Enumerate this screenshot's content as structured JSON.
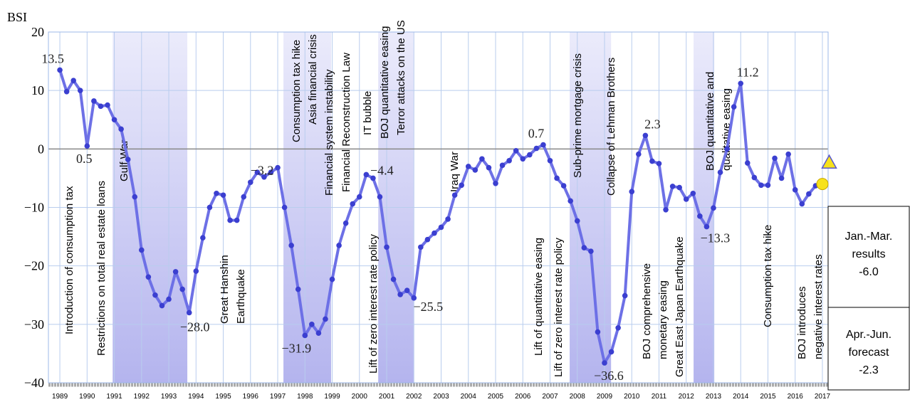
{
  "chart_data": {
    "type": "line",
    "y_label": "BSI",
    "xlim": [
      1988.58,
      2017.21
    ],
    "ylim": [
      -40,
      20
    ],
    "xticks": [
      1989,
      1990,
      1991,
      1992,
      1993,
      1994,
      1995,
      1996,
      1997,
      1998,
      1999,
      2000,
      2001,
      2002,
      2003,
      2004,
      2005,
      2006,
      2007,
      2008,
      2009,
      2010,
      2011,
      2012,
      2013,
      2014,
      2015,
      2016,
      2017
    ],
    "yticks": [
      20,
      10,
      0,
      {
        "value": -10,
        "label": "−10"
      },
      {
        "value": -20,
        "label": "−20"
      },
      {
        "value": -30,
        "label": "−30"
      },
      {
        "value": -40,
        "label": "−40"
      }
    ],
    "grid": true,
    "shaded_periods": [
      [
        1990.94,
        1993.68
      ],
      [
        1997.21,
        1998.96
      ],
      [
        2000.69,
        2001.99
      ],
      [
        2007.72,
        2009.24
      ],
      [
        2012.27,
        2013.03
      ]
    ],
    "series": [
      {
        "color": "#6d70e6",
        "marker_color": "#3b3fd0",
        "x": [
          1989,
          1989.25,
          1989.5,
          1989.75,
          1990,
          1990.25,
          1990.5,
          1990.75,
          1991,
          1991.25,
          1991.5,
          1991.75,
          1992,
          1992.25,
          1992.5,
          1992.75,
          1993,
          1993.25,
          1993.5,
          1993.75,
          1994,
          1994.25,
          1994.5,
          1994.75,
          1995,
          1995.25,
          1995.5,
          1995.75,
          1996,
          1996.25,
          1996.5,
          1996.75,
          1997,
          1997.25,
          1997.5,
          1997.75,
          1998,
          1998.25,
          1998.5,
          1998.75,
          1999,
          1999.25,
          1999.5,
          1999.75,
          2000,
          2000.25,
          2000.5,
          2000.75,
          2001,
          2001.25,
          2001.5,
          2001.75,
          2002,
          2002.25,
          2002.5,
          2002.75,
          2003,
          2003.25,
          2003.5,
          2003.75,
          2004,
          2004.25,
          2004.5,
          2004.75,
          2005,
          2005.25,
          2005.5,
          2005.75,
          2006,
          2006.25,
          2006.5,
          2006.75,
          2007,
          2007.25,
          2007.5,
          2007.75,
          2008,
          2008.25,
          2008.5,
          2008.75,
          2009,
          2009.25,
          2009.5,
          2009.75,
          2010,
          2010.25,
          2010.5,
          2010.75,
          2011,
          2011.25,
          2011.5,
          2011.75,
          2012,
          2012.25,
          2012.5,
          2012.75,
          2013,
          2013.25,
          2013.5,
          2013.75,
          2014,
          2014.25,
          2014.5,
          2014.75,
          2015,
          2015.25,
          2015.5,
          2015.75,
          2016,
          2016.25,
          2016.5,
          2016.75
        ],
        "values": [
          13.5,
          9.8,
          11.7,
          10.0,
          0.5,
          8.2,
          7.3,
          7.5,
          5.0,
          3.4,
          -1.8,
          -8.2,
          -17.3,
          -21.9,
          -25.0,
          -26.8,
          -25.7,
          -21.0,
          -24.0,
          -28.0,
          -20.9,
          -15.2,
          -10.0,
          -7.6,
          -7.9,
          -12.2,
          -12.2,
          -8.2,
          -5.7,
          -4.0,
          -4.8,
          -4.0,
          -3.2,
          -10.0,
          -16.5,
          -24.0,
          -31.9,
          -30.0,
          -31.5,
          -29.1,
          -22.3,
          -16.5,
          -12.7,
          -9.4,
          -8.2,
          -4.4,
          -5.0,
          -8.2,
          -16.8,
          -22.3,
          -24.9,
          -24.2,
          -25.5,
          -16.8,
          -15.5,
          -14.4,
          -13.4,
          -12.0,
          -7.9,
          -6.2,
          -3.0,
          -3.6,
          -1.7,
          -3.2,
          -5.9,
          -2.8,
          -2.0,
          -0.3,
          -1.7,
          -1.0,
          0.1,
          0.7,
          -2.0,
          -5.0,
          -6.3,
          -8.9,
          -12.3,
          -16.9,
          -17.5,
          -31.3,
          -36.6,
          -34.7,
          -30.6,
          -25.1,
          -7.3,
          -0.9,
          2.3,
          -2.1,
          -2.5,
          -10.4,
          -6.4,
          -6.6,
          -8.6,
          -7.6,
          -11.5,
          -13.3,
          -10.1,
          -4.0,
          0.0,
          7.2,
          11.2,
          -2.4,
          -4.9,
          -6.2,
          -6.2,
          -1.6,
          -5.0,
          -0.9,
          -7.0,
          -9.4,
          -7.7,
          -6.3
        ],
        "value_labels": [
          "13.5",
          null,
          null,
          null,
          "0.5",
          null,
          null,
          null,
          null,
          null,
          null,
          null,
          null,
          null,
          null,
          null,
          null,
          null,
          null,
          "−28.0",
          null,
          null,
          null,
          null,
          null,
          null,
          null,
          null,
          null,
          null,
          null,
          null,
          "−3.2",
          null,
          null,
          null,
          "−31.9",
          null,
          null,
          null,
          null,
          null,
          null,
          null,
          null,
          "−4.4",
          null,
          null,
          null,
          null,
          null,
          null,
          "−25.5",
          null,
          null,
          null,
          null,
          null,
          null,
          null,
          null,
          null,
          null,
          null,
          null,
          null,
          null,
          null,
          null,
          null,
          null,
          "0.7",
          null,
          null,
          null,
          null,
          null,
          null,
          null,
          null,
          "−36.6",
          null,
          null,
          null,
          null,
          null,
          "2.3",
          null,
          null,
          null,
          null,
          null,
          null,
          null,
          null,
          "−13.3",
          null,
          null,
          null,
          null,
          "11.2",
          null,
          null,
          null,
          null,
          null,
          null,
          null,
          null,
          null,
          null,
          null
        ]
      }
    ],
    "result": {
      "lines": [
        "Jan.-Mar.",
        "results"
      ],
      "x": 2017.0,
      "value": -6.0,
      "value_label": "-6.0",
      "color": "#f7e21b"
    },
    "forecast": {
      "lines": [
        "Apr.-Jun.",
        "forecast"
      ],
      "x": 2017.25,
      "value": -2.3,
      "value_label": "-2.3",
      "color": "#f7e21b"
    },
    "annotations": [
      [
        "Introduction of consumption tax"
      ],
      [
        "Restrictions on total real estate loans"
      ],
      [
        "Gulf War"
      ],
      [
        "Great Hanshin",
        "Earthquake"
      ],
      [
        "Consumption tax hike",
        "Asia financial crisis"
      ],
      [
        "Financial system instability",
        "Financial Reconstruction Law"
      ],
      [
        "IT bubble"
      ],
      [
        "BOJ quantitative easing",
        "Terror attacks on the US"
      ],
      [
        "Lift of zero interest rate policy"
      ],
      [
        "Iraq War"
      ],
      [
        "Sub-prime mortgage crisis"
      ],
      [
        "Collapse of Lehman Brothers"
      ],
      [
        "Lift of quantitative easing"
      ],
      [
        "Lift of zero interest rate policy"
      ],
      [
        "BOJ comprehensive",
        "monetary easing"
      ],
      [
        "Great East Japan Earthquake"
      ],
      [
        "BOJ quantitative and",
        "qualitative easing"
      ],
      [
        "Consumption tax hike"
      ],
      [
        "BOJ introduces",
        "negative interest rates"
      ]
    ]
  }
}
